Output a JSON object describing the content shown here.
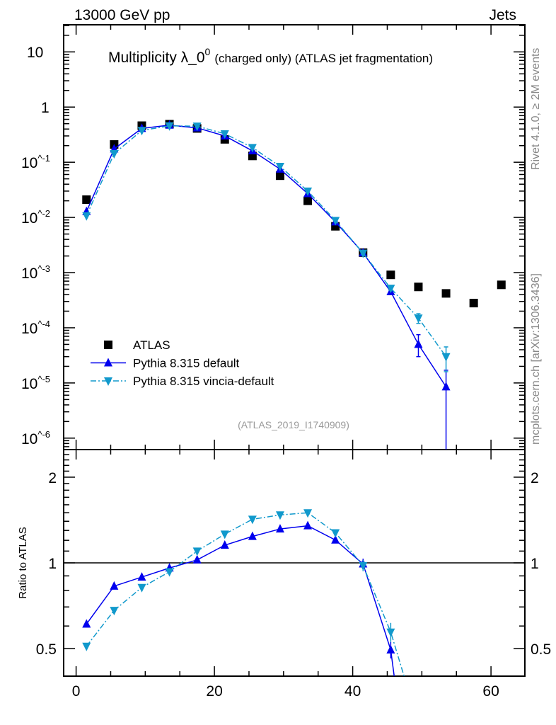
{
  "header": {
    "left": "13000 GeV pp",
    "right": "Jets"
  },
  "side_text": {
    "upper": "Rivet 4.1.0, ≥ 2M events",
    "lower": "mcplots.cern.ch [arXiv:1306.3436]"
  },
  "watermark": "(ATLAS_2019_I1740909)",
  "chart_data": [
    {
      "type": "scatter",
      "panel": "main",
      "title": "Multiplicity λ_0",
      "title_sup": "0",
      "title_suffix": "(charged only) (ATLAS jet fragmentation)",
      "xlabel": "",
      "ylabel": "",
      "xlim": [
        -1.8,
        64.9
      ],
      "ylim": [
        6.2e-07,
        31
      ],
      "yscale": "log",
      "yticks": [
        10,
        1,
        0.1,
        0.01,
        0.001,
        0.0001,
        1e-05,
        1e-06
      ],
      "ytick_labels": [
        "10",
        "1",
        "10^-1",
        "10^-2",
        "10^-3",
        "10^-4",
        "10^-5",
        "10^-6"
      ],
      "legend_position": "lower-left",
      "x": [
        1.5,
        5.5,
        9.5,
        13.5,
        17.5,
        21.5,
        25.5,
        29.5,
        33.5,
        37.5,
        41.5,
        45.5,
        49.5,
        53.5,
        57.5,
        61.5
      ],
      "series": [
        {
          "name": "ATLAS",
          "color": "#000000",
          "marker": "square",
          "line": "none",
          "values": [
            0.021,
            0.21,
            0.46,
            0.49,
            0.41,
            0.26,
            0.13,
            0.057,
            0.02,
            0.0069,
            0.0023,
            0.00091,
            0.00055,
            0.00042,
            0.00028,
            0.0006
          ]
        },
        {
          "name": "Pythia 8.315 default",
          "color": "#0000ee",
          "marker": "triangle-up",
          "line": "solid",
          "values": [
            0.0128,
            0.174,
            0.41,
            0.47,
            0.42,
            0.3,
            0.161,
            0.075,
            0.027,
            0.0083,
            0.00228,
            0.00045,
            5e-05,
            8.5e-06
          ],
          "err_low": [
            0,
            0,
            0,
            0,
            0,
            0,
            0,
            0,
            0,
            0,
            0.0001,
            3e-05,
            2e-05,
            8.5e-06
          ],
          "err_high": [
            0,
            0,
            0,
            0,
            0,
            0,
            0,
            0,
            0,
            0,
            0.0001,
            3e-05,
            2.5e-05,
            8.5e-06
          ]
        },
        {
          "name": "Pythia 8.315 vincia-default",
          "color": "#1199cc",
          "marker": "triangle-down",
          "line": "dashdot",
          "values": [
            0.0107,
            0.143,
            0.377,
            0.456,
            0.451,
            0.328,
            0.185,
            0.084,
            0.03,
            0.0088,
            0.00225,
            0.00052,
            0.00015,
            3e-05
          ],
          "err_low": [
            0,
            0,
            0,
            0,
            0,
            0,
            0,
            0,
            0,
            0,
            0.0001,
            4e-05,
            3e-05,
            1.4e-05
          ],
          "err_high": [
            0,
            0,
            0,
            0,
            0,
            0,
            0,
            0,
            0,
            0,
            0.0001,
            4e-05,
            3e-05,
            1.5e-05
          ]
        }
      ]
    },
    {
      "type": "line",
      "panel": "ratio",
      "xlabel": "",
      "ylabel": "Ratio to ATLAS",
      "xlim": [
        -1.8,
        64.9
      ],
      "ylim": [
        0.4,
        2.5
      ],
      "yscale": "log",
      "yticks": [
        0.5,
        1,
        2
      ],
      "ytick_labels": [
        "0.5",
        "1",
        "2"
      ],
      "xticks": [
        0,
        20,
        40,
        60
      ],
      "xtick_labels": [
        "0",
        "20",
        "40",
        "60"
      ],
      "reference_line": 1
    }
  ]
}
